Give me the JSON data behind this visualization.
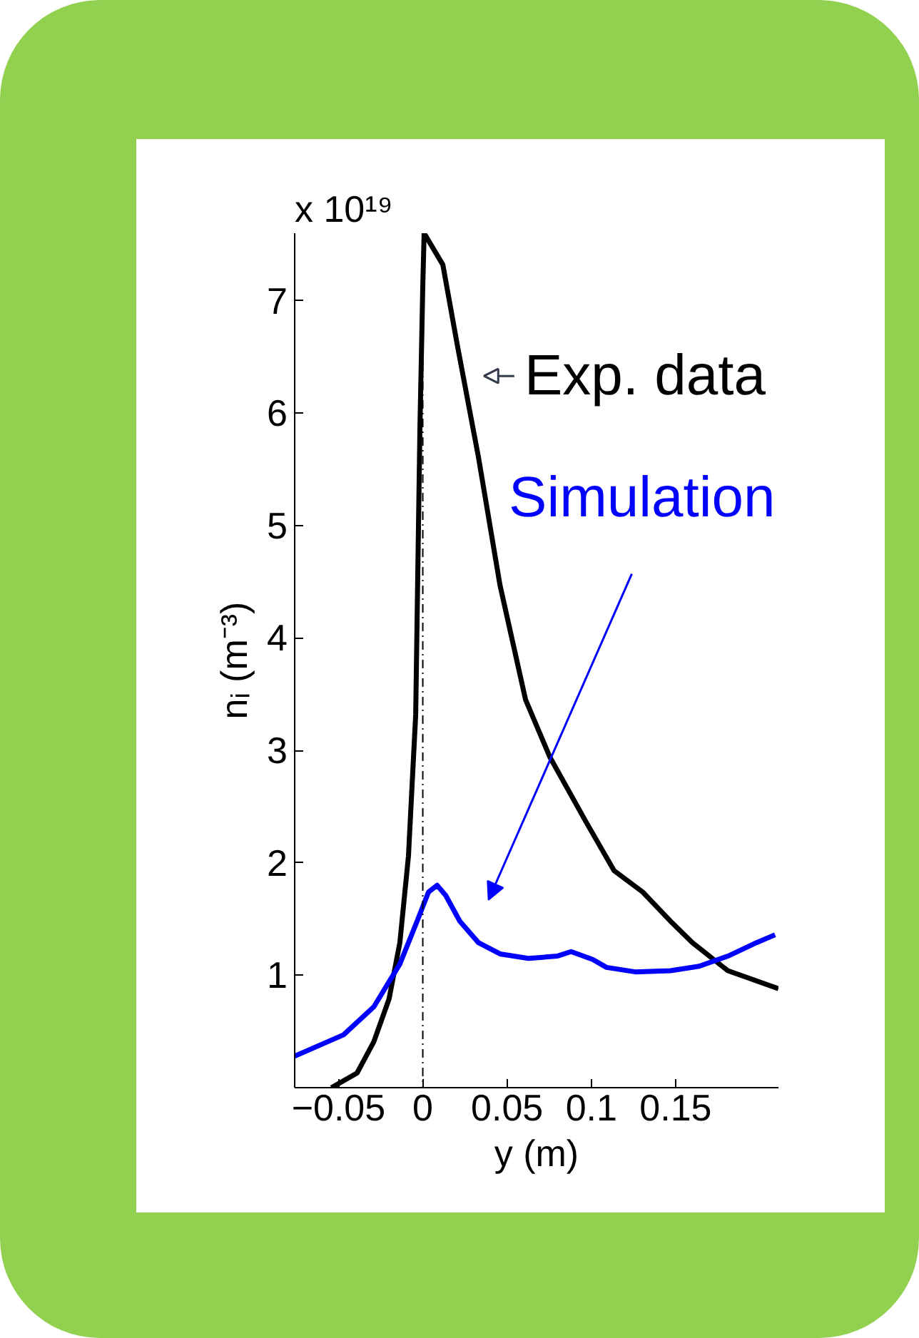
{
  "chart_data": {
    "type": "line",
    "title": "x 10¹⁹",
    "xlabel": "y (m)",
    "ylabel": "nᵢ (m⁻³)",
    "xlim": [
      -0.076,
      0.211
    ],
    "ylim": [
      0,
      7.6
    ],
    "xticks": [
      {
        "value": -0.05,
        "label": "−0.05"
      },
      0,
      0.05,
      0.1,
      0.15
    ],
    "yticks": [
      1,
      2,
      3,
      4,
      5,
      6,
      7
    ],
    "grid": false,
    "legend": false,
    "line_style": "solid",
    "series": [
      {
        "name": "Exp. data",
        "color": "#000000",
        "x": [
          -0.0542,
          -0.039,
          -0.029,
          -0.02,
          -0.0136,
          -0.0085,
          -0.0042,
          -0.0017,
          0,
          0.0008,
          0.0119,
          0.0203,
          0.033,
          0.0458,
          0.061,
          0.0754,
          0.0966,
          0.1135,
          0.1305,
          0.147,
          0.16,
          0.181,
          0.211
        ],
        "values": [
          0,
          0.13,
          0.41,
          0.79,
          1.29,
          2.06,
          3.32,
          5.86,
          7.13,
          7.6,
          7.32,
          6.62,
          5.61,
          4.47,
          3.45,
          2.94,
          2.37,
          1.93,
          1.74,
          1.48,
          1.29,
          1.04,
          0.88
        ]
      },
      {
        "name": "Simulation",
        "color": "#0000ff",
        "x": [
          -0.076,
          -0.047,
          -0.029,
          -0.0136,
          -0.0034,
          0.0034,
          0.0085,
          0.0136,
          0.022,
          0.033,
          0.0458,
          0.0627,
          0.0797,
          0.088,
          0.1008,
          0.109,
          0.126,
          0.147,
          0.164,
          0.181,
          0.198,
          0.209
        ],
        "values": [
          0.28,
          0.47,
          0.72,
          1.1,
          1.48,
          1.74,
          1.8,
          1.71,
          1.48,
          1.29,
          1.19,
          1.15,
          1.17,
          1.21,
          1.14,
          1.07,
          1.03,
          1.04,
          1.08,
          1.17,
          1.29,
          1.36
        ]
      }
    ],
    "ref_lines": [
      {
        "axis": "x",
        "value": 0,
        "color": "#000000",
        "line_style": "dashed"
      }
    ]
  }
}
